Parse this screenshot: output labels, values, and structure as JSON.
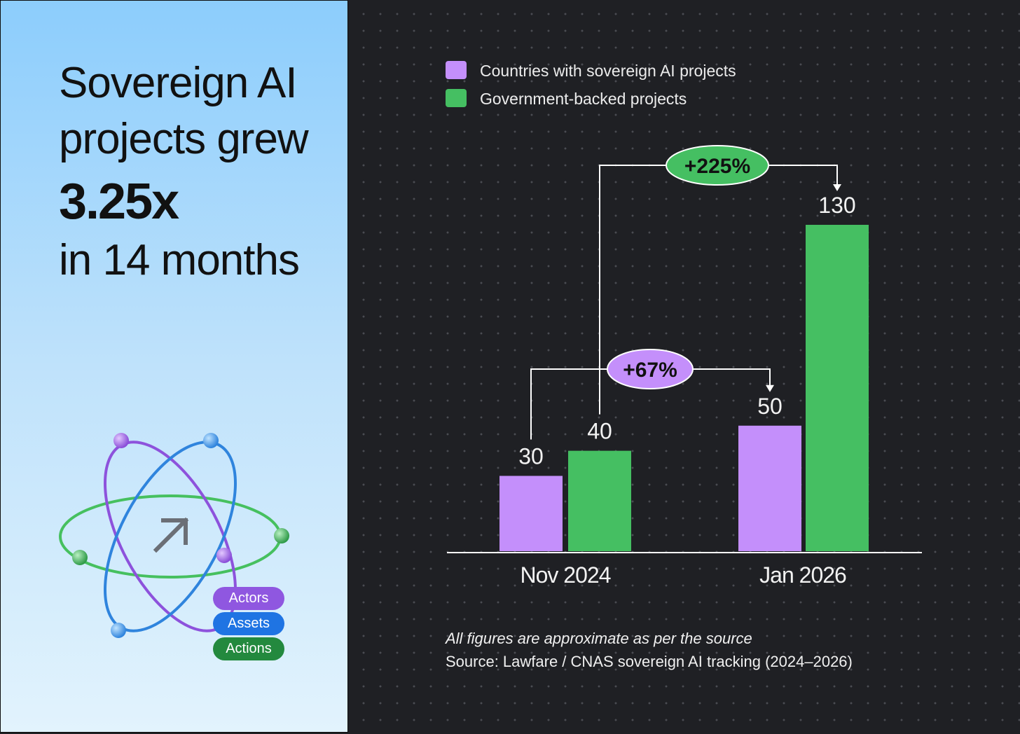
{
  "headline": {
    "line1": "Sovereign AI",
    "line2": "projects grew",
    "multiplier": "3.25x",
    "line4": "in 14 months"
  },
  "logo": {
    "icon": "atom-arrow-icon",
    "pills": [
      "Actors",
      "Assets",
      "Actions"
    ]
  },
  "colors": {
    "countries": "#c48ffb",
    "government": "#45bf62",
    "axis": "#ffffff",
    "background": "#1f2024"
  },
  "chart_data": {
    "type": "bar",
    "categories": [
      "Nov 2024",
      "Jan 2026"
    ],
    "series": [
      {
        "name": "Countries with sovereign AI projects",
        "values": [
          30,
          50
        ],
        "color": "#c48ffb"
      },
      {
        "name": "Government-backed projects",
        "values": [
          40,
          130
        ],
        "color": "#45bf62"
      }
    ],
    "data_labels": [
      [
        "30",
        "50"
      ],
      [
        "40",
        "130"
      ]
    ],
    "annotations": [
      {
        "label": "+67%",
        "series": 0,
        "from": "Nov 2024",
        "to": "Jan 2026",
        "color": "#c48ffb"
      },
      {
        "label": "+225%",
        "series": 1,
        "from": "Nov 2024",
        "to": "Jan 2026",
        "color": "#45bf62"
      }
    ],
    "legend_position": "top-left",
    "ylim": [
      0,
      130
    ],
    "grid": false
  },
  "notes": {
    "disclaimer": "All figures are approximate as per the source",
    "source": "Source: Lawfare / CNAS sovereign AI tracking (2024–2026)"
  }
}
